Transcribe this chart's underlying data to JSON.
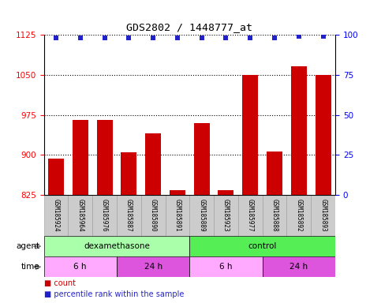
{
  "title": "GDS2802 / 1448777_at",
  "samples": [
    "GSM185924",
    "GSM185964",
    "GSM185976",
    "GSM185887",
    "GSM185890",
    "GSM185891",
    "GSM185889",
    "GSM185923",
    "GSM185977",
    "GSM185888",
    "GSM185892",
    "GSM185893"
  ],
  "bar_values": [
    893,
    965,
    965,
    905,
    940,
    835,
    960,
    835,
    1050,
    907,
    1065,
    1050
  ],
  "percentile_values": [
    98,
    98,
    98,
    98,
    98,
    98,
    98,
    98,
    98,
    98,
    99,
    99
  ],
  "bar_color": "#cc0000",
  "dot_color": "#2222cc",
  "ylim_left": [
    825,
    1125
  ],
  "yticks_left": [
    825,
    900,
    975,
    1050,
    1125
  ],
  "ylim_right": [
    0,
    100
  ],
  "yticks_right": [
    0,
    25,
    50,
    75,
    100
  ],
  "agent_groups": [
    {
      "label": "dexamethasone",
      "start": 0,
      "end": 6,
      "color": "#aaffaa"
    },
    {
      "label": "control",
      "start": 6,
      "end": 12,
      "color": "#55ee55"
    }
  ],
  "time_groups": [
    {
      "label": "6 h",
      "start": 0,
      "end": 3,
      "color": "#ffaaff"
    },
    {
      "label": "24 h",
      "start": 3,
      "end": 6,
      "color": "#dd55dd"
    },
    {
      "label": "6 h",
      "start": 6,
      "end": 9,
      "color": "#ffaaff"
    },
    {
      "label": "24 h",
      "start": 9,
      "end": 12,
      "color": "#dd55dd"
    }
  ],
  "agent_label": "agent",
  "time_label": "time",
  "legend_count_label": "count",
  "legend_percentile_label": "percentile rank within the sample",
  "xtick_bg_color": "#cccccc",
  "xtick_border_color": "#999999"
}
